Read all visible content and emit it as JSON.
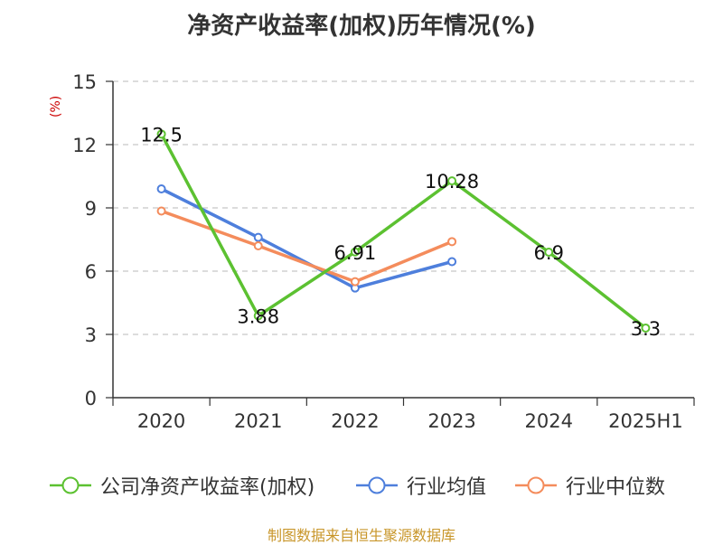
{
  "chart_data": {
    "type": "line",
    "title": "净资产收益率(加权)历年情况(%)",
    "unit_label": "(%)",
    "categories": [
      "2020",
      "2021",
      "2022",
      "2023",
      "2024",
      "2025H1"
    ],
    "ylim": [
      0,
      15
    ],
    "yticks": [
      0,
      3,
      6,
      9,
      12,
      15
    ],
    "grid": true,
    "legend_position": "bottom",
    "series": [
      {
        "name": "公司净资产收益率(加权)",
        "color": "#5cc131",
        "values": [
          12.5,
          3.88,
          6.91,
          10.28,
          6.9,
          3.3
        ],
        "labels": [
          "12.5",
          "3.88",
          "6.91",
          "10.28",
          "6.9",
          "3.3"
        ]
      },
      {
        "name": "行业均值",
        "color": "#4e7fdc",
        "values": [
          9.9,
          7.6,
          5.2,
          6.45,
          null,
          null
        ]
      },
      {
        "name": "行业中位数",
        "color": "#f48c5c",
        "values": [
          8.85,
          7.2,
          5.5,
          7.4,
          null,
          null
        ]
      }
    ]
  },
  "footer": {
    "source": "制图数据来自恒生聚源数据库"
  }
}
